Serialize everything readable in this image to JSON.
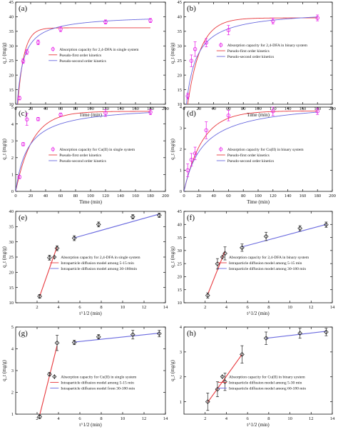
{
  "colors": {
    "exp_magenta": "#e617e6",
    "exp_black": "#222222",
    "model_red": "#e8383d",
    "model_blue": "#6a6adf",
    "diff_red": "#e8383d",
    "diff_blue": "#5a5ae0"
  },
  "chart_data": [
    {
      "panel": "(a)",
      "type": "scatter",
      "xlabel": "Time (min)",
      "ylabel": "q_t (mg/g)",
      "xlim": [
        0,
        200
      ],
      "ylim": [
        10,
        45
      ],
      "xticks": [
        "0",
        "20",
        "40",
        "60",
        "80",
        "100",
        "120",
        "140",
        "160",
        "180",
        "200"
      ],
      "yticks": [
        "10",
        "15",
        "20",
        "25",
        "30",
        "35",
        "40",
        "45"
      ],
      "marker": "magenta",
      "points": {
        "x": [
          5,
          10,
          15,
          30,
          60,
          120,
          180
        ],
        "y": [
          12.1,
          24.8,
          27.9,
          31.2,
          35.7,
          38.2,
          38.7
        ],
        "err": [
          0.6,
          0.8,
          0.8,
          0.8,
          0.8,
          0.7,
          0.7
        ]
      },
      "models": [
        {
          "name": "Pseudo-first order kinetics",
          "kind": "pfo",
          "qe": 36.2,
          "k": 0.12,
          "color": "red"
        },
        {
          "name": "Pseudo-second order kinetics",
          "kind": "pso",
          "qe": 40.6,
          "k": 0.0038,
          "color": "blue"
        }
      ],
      "legend": {
        "exp": "Absorption capacity for 2,4-DFA in single system",
        "m1": "Pseudo-first order kinetics",
        "m2": "Pseudo-second order kinetics"
      }
    },
    {
      "panel": "(b)",
      "type": "scatter",
      "xlabel": "Time (min)",
      "ylabel": "q_t (mg/g)",
      "xlim": [
        0,
        200
      ],
      "ylim": [
        10,
        45
      ],
      "xticks": [
        "0",
        "20",
        "40",
        "60",
        "80",
        "100",
        "120",
        "140",
        "160",
        "180",
        "200"
      ],
      "yticks": [
        "10",
        "15",
        "20",
        "25",
        "30",
        "35",
        "40",
        "45"
      ],
      "marker": "magenta",
      "points": {
        "x": [
          5,
          10,
          15,
          30,
          60,
          120,
          180
        ],
        "y": [
          12.8,
          24.9,
          28.9,
          31.1,
          35.4,
          38.5,
          39.6
        ],
        "err": [
          1.0,
          2.0,
          2.5,
          1.4,
          1.6,
          1.0,
          1.0
        ]
      },
      "models": [
        {
          "name": "Pseudo-first order kinetics",
          "kind": "pfo",
          "qe": 39.6,
          "k": 0.058,
          "color": "red"
        },
        {
          "name": "Pseudo-second order kinetics",
          "kind": "pso",
          "qe": 42.3,
          "k": 0.0022,
          "color": "blue"
        }
      ],
      "legend": {
        "exp": "Absorption capacity for 2,4-DFA in binary system",
        "m1": "Pseudo-first order kinetics",
        "m2": "Pseudo-second order kinetics"
      }
    },
    {
      "panel": "(c)",
      "type": "scatter",
      "xlabel": "Time (min)",
      "ylabel": "q_t (mg/g)",
      "xlim": [
        0,
        200
      ],
      "ylim": [
        0,
        5
      ],
      "xticks": [
        "0",
        "20",
        "40",
        "60",
        "80",
        "100",
        "120",
        "140",
        "160",
        "180",
        "200"
      ],
      "yticks": [
        "0",
        "1",
        "2",
        "3",
        "4",
        "5"
      ],
      "marker": "magenta",
      "points": {
        "x": [
          5,
          10,
          15,
          30,
          60,
          120,
          180
        ],
        "y": [
          0.85,
          2.8,
          4.27,
          4.29,
          4.55,
          4.65,
          4.7
        ],
        "err": [
          0.1,
          0.1,
          0.35,
          0.1,
          0.1,
          0.2,
          0.15
        ]
      },
      "models": [
        {
          "name": "Pseudo-first order kinetics",
          "kind": "pfo",
          "qe": 4.75,
          "k": 0.045,
          "color": "red"
        },
        {
          "name": "Pseudo-second order kinetics",
          "kind": "pso",
          "qe": 5.1,
          "k": 0.012,
          "color": "blue"
        }
      ],
      "legend": {
        "exp": "Absorption capacity for Cu(II) in single system",
        "m1": "Pseudo-first order kinetics",
        "m2": "Pseudo-second order kinetics"
      }
    },
    {
      "panel": "(d)",
      "type": "scatter",
      "xlabel": "Time (min)",
      "ylabel": "q_t (mg/g)",
      "xlim": [
        0,
        200
      ],
      "ylim": [
        0,
        4
      ],
      "xticks": [
        "0",
        "20",
        "40",
        "60",
        "80",
        "100",
        "120",
        "140",
        "160",
        "180",
        "200"
      ],
      "yticks": [
        "0",
        "1",
        "2",
        "3",
        "4"
      ],
      "marker": "magenta",
      "points": {
        "x": [
          5,
          10,
          15,
          30,
          60,
          120,
          180
        ],
        "y": [
          1.0,
          1.5,
          1.8,
          2.9,
          3.6,
          3.8,
          3.8
        ],
        "err": [
          0.3,
          0.3,
          0.3,
          0.4,
          0.25,
          0.2,
          0.15
        ]
      },
      "models": [
        {
          "name": "Pseudo-first order kinetics",
          "kind": "pfo",
          "qe": 3.82,
          "k": 0.04,
          "color": "red"
        },
        {
          "name": "Pseudo-second order kinetics",
          "kind": "pso",
          "qe": 4.3,
          "k": 0.009,
          "color": "blue"
        }
      ],
      "legend": {
        "exp": "Absorption capacity for Cu(II) in binary system",
        "m1": "Pseudo-first order kinetics",
        "m2": "Pseudo-second order kinetics"
      }
    },
    {
      "panel": "(e)",
      "type": "scatter",
      "xlabel": "t^1/2 (min)",
      "ylabel": "q_t (mg/g)",
      "xlim": [
        0,
        14
      ],
      "ylim": [
        10,
        40
      ],
      "xticks": [
        "2",
        "4",
        "6",
        "8",
        "10",
        "12",
        "14"
      ],
      "xtickvals": [
        2,
        4,
        6,
        8,
        10,
        12,
        14
      ],
      "yticks": [
        "10",
        "15",
        "20",
        "25",
        "30",
        "35",
        "40"
      ],
      "marker": "black",
      "points": {
        "x": [
          2.24,
          3.16,
          3.87,
          5.48,
          7.75,
          10.95,
          13.42
        ],
        "y": [
          12.1,
          24.8,
          27.9,
          31.2,
          35.7,
          38.2,
          38.7
        ],
        "err": [
          0.6,
          0.8,
          0.8,
          0.8,
          0.8,
          0.7,
          0.7
        ]
      },
      "lines": [
        {
          "name": "Intraparticle diffusion model among 5-15 min",
          "x": [
            2.24,
            3.87
          ],
          "y": [
            12.1,
            28.4
          ],
          "color": "red"
        },
        {
          "name": "Intraparticle diffusion model among 30-180min",
          "x": [
            5.48,
            13.42
          ],
          "y": [
            31.3,
            39.1
          ],
          "color": "blue"
        }
      ],
      "legend": {
        "exp": "Absorption capacity for 2,4-DFA  in single system",
        "m1": "Intraparticle diffusion model among 5-15 min",
        "m2": "Intraparticle diffusion model among 30-180min"
      }
    },
    {
      "panel": "(f)",
      "type": "scatter",
      "xlabel": "t^1/2 (min)",
      "ylabel": "q_t (mg/g)",
      "xlim": [
        0,
        14
      ],
      "ylim": [
        10,
        45
      ],
      "xticks": [
        "2",
        "4",
        "6",
        "8",
        "10",
        "12",
        "14"
      ],
      "xtickvals": [
        2,
        4,
        6,
        8,
        10,
        12,
        14
      ],
      "yticks": [
        "10",
        "15",
        "20",
        "25",
        "30",
        "35",
        "40",
        "45"
      ],
      "marker": "black",
      "points": {
        "x": [
          2.24,
          3.16,
          3.87,
          5.48,
          7.75,
          10.95,
          13.42
        ],
        "y": [
          12.8,
          24.9,
          28.9,
          31.1,
          35.4,
          38.5,
          39.9
        ],
        "err": [
          1.0,
          2.0,
          2.5,
          1.4,
          1.6,
          1.0,
          1.0
        ]
      },
      "lines": [
        {
          "name": "Intraparticle diffusion model among 5-15 min",
          "x": [
            2.24,
            3.87
          ],
          "y": [
            13.2,
            29.8
          ],
          "color": "red"
        },
        {
          "name": "Intraparticle diffusion model among 30-180 min",
          "x": [
            5.48,
            13.42
          ],
          "y": [
            31.4,
            40.0
          ],
          "color": "blue"
        }
      ],
      "legend": {
        "exp": "Absorption capacity for 2,4-DFA in binary system",
        "m1": "Intraparticle diffusion model among 5-15 min",
        "m2": "Intraparticle diffusion model among 30-180 min"
      }
    },
    {
      "panel": "(g)",
      "type": "scatter",
      "xlabel": "t^1/2 (min)",
      "ylabel": "q_t (mg/g)",
      "xlim": [
        0,
        14
      ],
      "ylim": [
        1,
        5
      ],
      "xticks": [
        "2",
        "4",
        "6",
        "8",
        "10",
        "12",
        "14"
      ],
      "xtickvals": [
        2,
        4,
        6,
        8,
        10,
        12,
        14
      ],
      "yticks": [
        "1",
        "2",
        "3",
        "4",
        "5"
      ],
      "marker": "black",
      "points": {
        "x": [
          2.24,
          3.16,
          3.87,
          5.48,
          7.75,
          10.95,
          13.42
        ],
        "y": [
          0.88,
          2.83,
          4.27,
          4.29,
          4.55,
          4.65,
          4.7
        ],
        "err": [
          0.08,
          0.08,
          0.35,
          0.1,
          0.1,
          0.2,
          0.15
        ]
      },
      "lines": [
        {
          "name": "Intraparticle diffusion model among 5-15 min",
          "x": [
            2.24,
            3.87
          ],
          "y": [
            0.95,
            4.15
          ],
          "color": "red"
        },
        {
          "name": "Intraparticle diffusion model from 30-180 min",
          "x": [
            5.48,
            13.42
          ],
          "y": [
            4.31,
            4.72
          ],
          "color": "blue"
        }
      ],
      "legend": {
        "exp": "Absorption capacity for Cu(II) in single system",
        "m1": "Intraparticle diffusion model among 5-15 min",
        "m2": "Intraparticle diffusion model from 30-180 min"
      }
    },
    {
      "panel": "(h)",
      "type": "scatter",
      "xlabel": "t^1/2 (min)",
      "ylabel": "q_t (mg/g)",
      "xlim": [
        0,
        14
      ],
      "ylim": [
        0.5,
        4
      ],
      "xticks": [
        "2",
        "4",
        "6",
        "8",
        "10",
        "12",
        "14"
      ],
      "xtickvals": [
        2,
        4,
        6,
        8,
        10,
        12,
        14
      ],
      "yticks": [
        "1",
        "2",
        "3",
        "4"
      ],
      "ytickvals": [
        1,
        2,
        3,
        4
      ],
      "marker": "black",
      "points": {
        "x": [
          2.24,
          3.16,
          3.87,
          5.48,
          7.75,
          10.95,
          13.42
        ],
        "y": [
          1.0,
          1.5,
          1.8,
          2.9,
          3.55,
          3.75,
          3.8
        ],
        "err": [
          0.35,
          0.3,
          0.35,
          0.35,
          0.25,
          0.2,
          0.15
        ]
      },
      "lines": [
        {
          "name": "Intraparticle diffusion model among 5-30 min",
          "x": [
            2.24,
            5.48
          ],
          "y": [
            0.98,
            2.9
          ],
          "color": "red"
        },
        {
          "name": "Intraparticle diffusion model among 60-180 min",
          "x": [
            7.75,
            13.42
          ],
          "y": [
            3.55,
            3.83
          ],
          "color": "blue"
        }
      ],
      "legend": {
        "exp": "Absorption capacity for Cu(II) in binary system",
        "m1": "Intraparticle diffusion model among 5-30 min",
        "m2": "Intraparticle diffusion model among 60-180 min"
      }
    }
  ]
}
